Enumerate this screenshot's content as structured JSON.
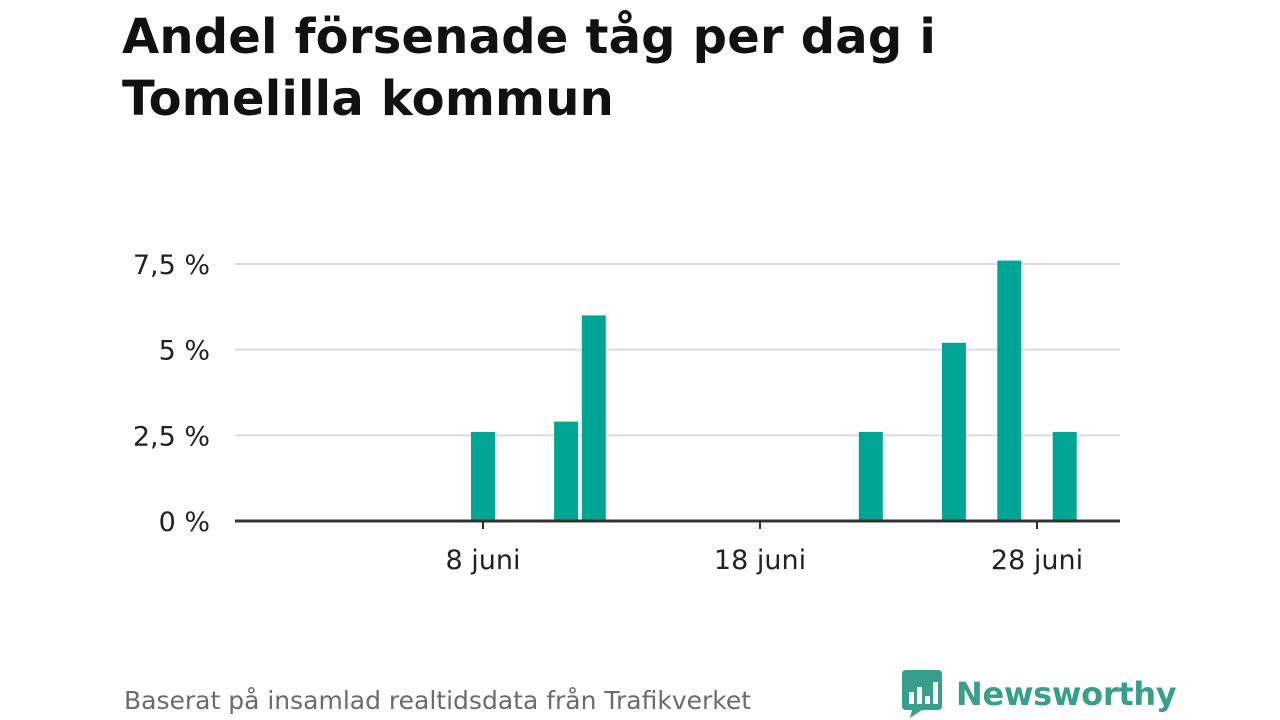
{
  "colors": {
    "bar": "#00a596",
    "grid": "#dddddd",
    "axis": "#333333",
    "brand": "#3a9e8d",
    "footer_text": "#6b6b6b"
  },
  "footer": {
    "source": "Baserat på insamlad realtidsdata från Trafikverket",
    "brand_name": "Newsworthy",
    "brand_icon": "newsworthy-bar-chart-logo"
  },
  "chart_data": {
    "type": "bar",
    "title": "Andel försenade tåg per dag i Tomelilla kommun",
    "xlabel": "",
    "ylabel": "",
    "x_axis": {
      "unit": "day of June",
      "range": [
        0,
        32
      ],
      "ticks": [
        {
          "value": 8,
          "label": "8 juni"
        },
        {
          "value": 18,
          "label": "18 juni"
        },
        {
          "value": 28,
          "label": "28 juni"
        }
      ]
    },
    "y_axis": {
      "range": [
        0,
        7.5
      ],
      "ticks": [
        {
          "value": 0,
          "label": "0 %"
        },
        {
          "value": 2.5,
          "label": "2,5 %"
        },
        {
          "value": 5,
          "label": "5 %"
        },
        {
          "value": 7.5,
          "label": "7,5 %"
        }
      ]
    },
    "grid": true,
    "legend": "none",
    "points": [
      {
        "day": 8,
        "value": 2.6
      },
      {
        "day": 11,
        "value": 2.9
      },
      {
        "day": 12,
        "value": 6.0
      },
      {
        "day": 22,
        "value": 2.6
      },
      {
        "day": 25,
        "value": 5.2
      },
      {
        "day": 27,
        "value": 7.6
      },
      {
        "day": 29,
        "value": 2.6
      }
    ]
  }
}
